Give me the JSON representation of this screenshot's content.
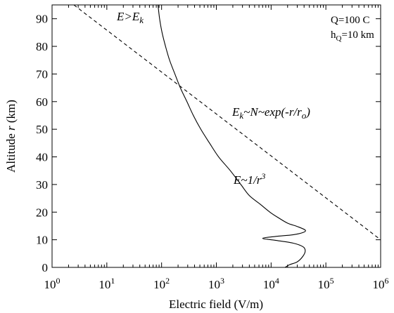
{
  "chart_data": {
    "type": "line",
    "xlabel": "Electric field (V/m)",
    "ylabel_prefix": "Altitude ",
    "ylabel_var": "r",
    "ylabel_unit": " (km)",
    "x_scale": "log",
    "xlim": [
      1,
      1000000
    ],
    "ylim": [
      0,
      95
    ],
    "x_ticks": [
      {
        "value": 1,
        "base": "10",
        "exp": "0"
      },
      {
        "value": 10,
        "base": "10",
        "exp": "1"
      },
      {
        "value": 100,
        "base": "10",
        "exp": "2"
      },
      {
        "value": 1000,
        "base": "10",
        "exp": "3"
      },
      {
        "value": 10000,
        "base": "10",
        "exp": "4"
      },
      {
        "value": 100000,
        "base": "10",
        "exp": "5"
      },
      {
        "value": 1000000,
        "base": "10",
        "exp": "6"
      }
    ],
    "y_ticks": [
      {
        "value": 0,
        "label": "0"
      },
      {
        "value": 10,
        "label": "10"
      },
      {
        "value": 20,
        "label": "20"
      },
      {
        "value": 30,
        "label": "30"
      },
      {
        "value": 40,
        "label": "40"
      },
      {
        "value": 50,
        "label": "50"
      },
      {
        "value": 60,
        "label": "60"
      },
      {
        "value": 70,
        "label": "70"
      },
      {
        "value": 80,
        "label": "80"
      },
      {
        "value": 90,
        "label": "90"
      }
    ],
    "series": [
      {
        "style": "solid",
        "color": "#000000",
        "points": [
          [
            18000,
            0
          ],
          [
            22000,
            1
          ],
          [
            30000,
            2
          ],
          [
            38000,
            4
          ],
          [
            42000,
            6
          ],
          [
            38000,
            7.5
          ],
          [
            25000,
            8.8
          ],
          [
            12000,
            9.8
          ],
          [
            7000,
            10.5
          ],
          [
            12000,
            11.2
          ],
          [
            25000,
            11.8
          ],
          [
            38000,
            12.6
          ],
          [
            42000,
            13.5
          ],
          [
            30000,
            14.8
          ],
          [
            20000,
            16
          ],
          [
            13500,
            18
          ],
          [
            9500,
            20
          ],
          [
            6200,
            23
          ],
          [
            4000,
            26
          ],
          [
            2800,
            30
          ],
          [
            1800,
            35
          ],
          [
            1100,
            40
          ],
          [
            750,
            45
          ],
          [
            520,
            50
          ],
          [
            380,
            55
          ],
          [
            290,
            60
          ],
          [
            220,
            65
          ],
          [
            175,
            70
          ],
          [
            140,
            75
          ],
          [
            118,
            80
          ],
          [
            102,
            85
          ],
          [
            92,
            90
          ],
          [
            86,
            95
          ]
        ]
      },
      {
        "style": "dashed",
        "color": "#000000",
        "points": [
          [
            2.5,
            95
          ],
          [
            1000000,
            10
          ]
        ]
      }
    ],
    "annotations": [
      {
        "id": "exceeds",
        "parts": [
          "E>E",
          "k"
        ]
      },
      {
        "id": "threshold",
        "parts": [
          "E",
          "k",
          "~N~exp(-r/r",
          "o",
          ")"
        ]
      },
      {
        "id": "falloff",
        "parts": [
          "E~1/r",
          "3"
        ]
      }
    ],
    "info_box": {
      "line1": "Q=100 C",
      "line2_main": "h",
      "line2_sub": "Q",
      "line2_rest": "=10 km"
    },
    "grid": false,
    "legend": "none"
  }
}
